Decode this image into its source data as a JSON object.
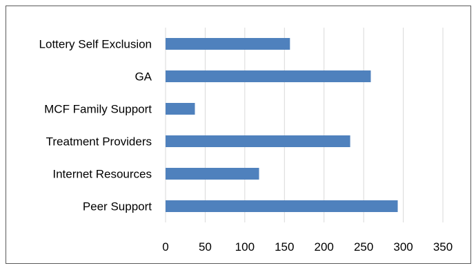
{
  "chart_data": {
    "type": "bar",
    "orientation": "horizontal",
    "categories": [
      "Lottery Self Exclusion",
      "GA",
      "MCF Family Support",
      "Treatment Providers",
      "Internet Resources",
      "Peer Support"
    ],
    "values": [
      157,
      259,
      37,
      233,
      118,
      293
    ],
    "xlim": [
      0,
      350
    ],
    "ticks": [
      0,
      50,
      100,
      150,
      200,
      250,
      300,
      350
    ],
    "tick_labels": [
      "0",
      "50",
      "100",
      "150",
      "200",
      "250",
      "300",
      "350"
    ],
    "grid": true,
    "legend": "none",
    "colors": {
      "bar": "#4F81BD",
      "grid": "#D9D9D9",
      "border": "#595959"
    }
  }
}
